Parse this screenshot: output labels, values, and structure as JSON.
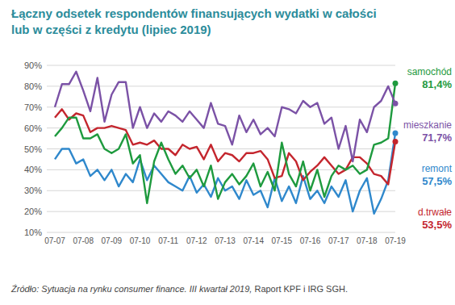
{
  "chart_data": {
    "type": "line",
    "title": "Łączny odsetek respondentów finansujących wydatki w całości\nlub w części z kredytu (lipiec 2019)",
    "source": {
      "italic": "Źródło: Sytuacja na rynku consumer finance. III kwartał 2019,",
      "normal": " Raport KPF i IRG SGH."
    },
    "categories": [
      "07-07",
      null,
      null,
      null,
      "07-08",
      null,
      null,
      null,
      "07-09",
      null,
      null,
      null,
      "07-10",
      null,
      null,
      null,
      "07-11",
      null,
      null,
      null,
      "07-12",
      null,
      null,
      null,
      "07-13",
      null,
      null,
      null,
      "07-14",
      null,
      null,
      null,
      "07-15",
      null,
      null,
      null,
      "07-16",
      null,
      null,
      null,
      "07-17",
      null,
      null,
      null,
      "07-18",
      null,
      null,
      null,
      "07-19"
    ],
    "ylim": [
      10,
      90
    ],
    "yticks": [
      {
        "value": 10,
        "label": "10%"
      },
      {
        "value": 20,
        "label": "20%"
      },
      {
        "value": 30,
        "label": "30%"
      },
      {
        "value": 40,
        "label": "40%"
      },
      {
        "value": 50,
        "label": "50%"
      },
      {
        "value": 60,
        "label": "60%"
      },
      {
        "value": 70,
        "label": "70%"
      },
      {
        "value": 80,
        "label": "80%"
      },
      {
        "value": 90,
        "label": "90%"
      }
    ],
    "grid": true,
    "series": [
      {
        "name": "samochód",
        "color": "#1e9a3e",
        "values": [
          56,
          60,
          65,
          65,
          55,
          55,
          57,
          50,
          48,
          50,
          57,
          43,
          47,
          24,
          44,
          53,
          45,
          38,
          42,
          36,
          40,
          32,
          42,
          26,
          34,
          38,
          33,
          37,
          43,
          32,
          39,
          30,
          53,
          38,
          32,
          44,
          30,
          40,
          27,
          37,
          42,
          40,
          42,
          38,
          40,
          52,
          53,
          55,
          81.4
        ]
      },
      {
        "name": "mieszkanie",
        "color": "#7b52a6",
        "values": [
          70,
          81,
          81,
          87,
          78,
          68,
          84,
          63,
          76,
          82,
          82,
          60,
          70,
          60,
          67,
          63,
          68,
          66,
          63,
          68,
          64,
          60,
          72,
          62,
          61,
          52,
          66,
          58,
          64,
          57,
          60,
          56,
          70,
          69,
          67,
          73,
          70,
          72,
          62,
          65,
          50,
          61,
          44,
          64,
          58,
          70,
          73,
          80,
          71.7
        ]
      },
      {
        "name": "remont",
        "color": "#2f88cc",
        "values": [
          45,
          50,
          50,
          43,
          45,
          37,
          40,
          35,
          40,
          32,
          38,
          34,
          45,
          35,
          42,
          38,
          34,
          32,
          30,
          37,
          29,
          33,
          27,
          36,
          30,
          32,
          26,
          35,
          28,
          30,
          22,
          36,
          25,
          32,
          24,
          37,
          26,
          30,
          24,
          32,
          27,
          35,
          20,
          30,
          36,
          19,
          26,
          35,
          57.5
        ]
      },
      {
        "name": "d.trwałe",
        "color": "#c4262e",
        "values": [
          65,
          69,
          64,
          67,
          66,
          58,
          60,
          60,
          61,
          60,
          59,
          52,
          53,
          52,
          54,
          50,
          50,
          47,
          52,
          50,
          51,
          45,
          52,
          44,
          48,
          47,
          44,
          48,
          48,
          49,
          45,
          36,
          37,
          48,
          44,
          35,
          39,
          42,
          46,
          42,
          38,
          40,
          46,
          46,
          43,
          38,
          37,
          33,
          53.5
        ]
      }
    ],
    "annotations": [
      "81,4%",
      "71,7%",
      "57,5%",
      "53,5%"
    ]
  }
}
